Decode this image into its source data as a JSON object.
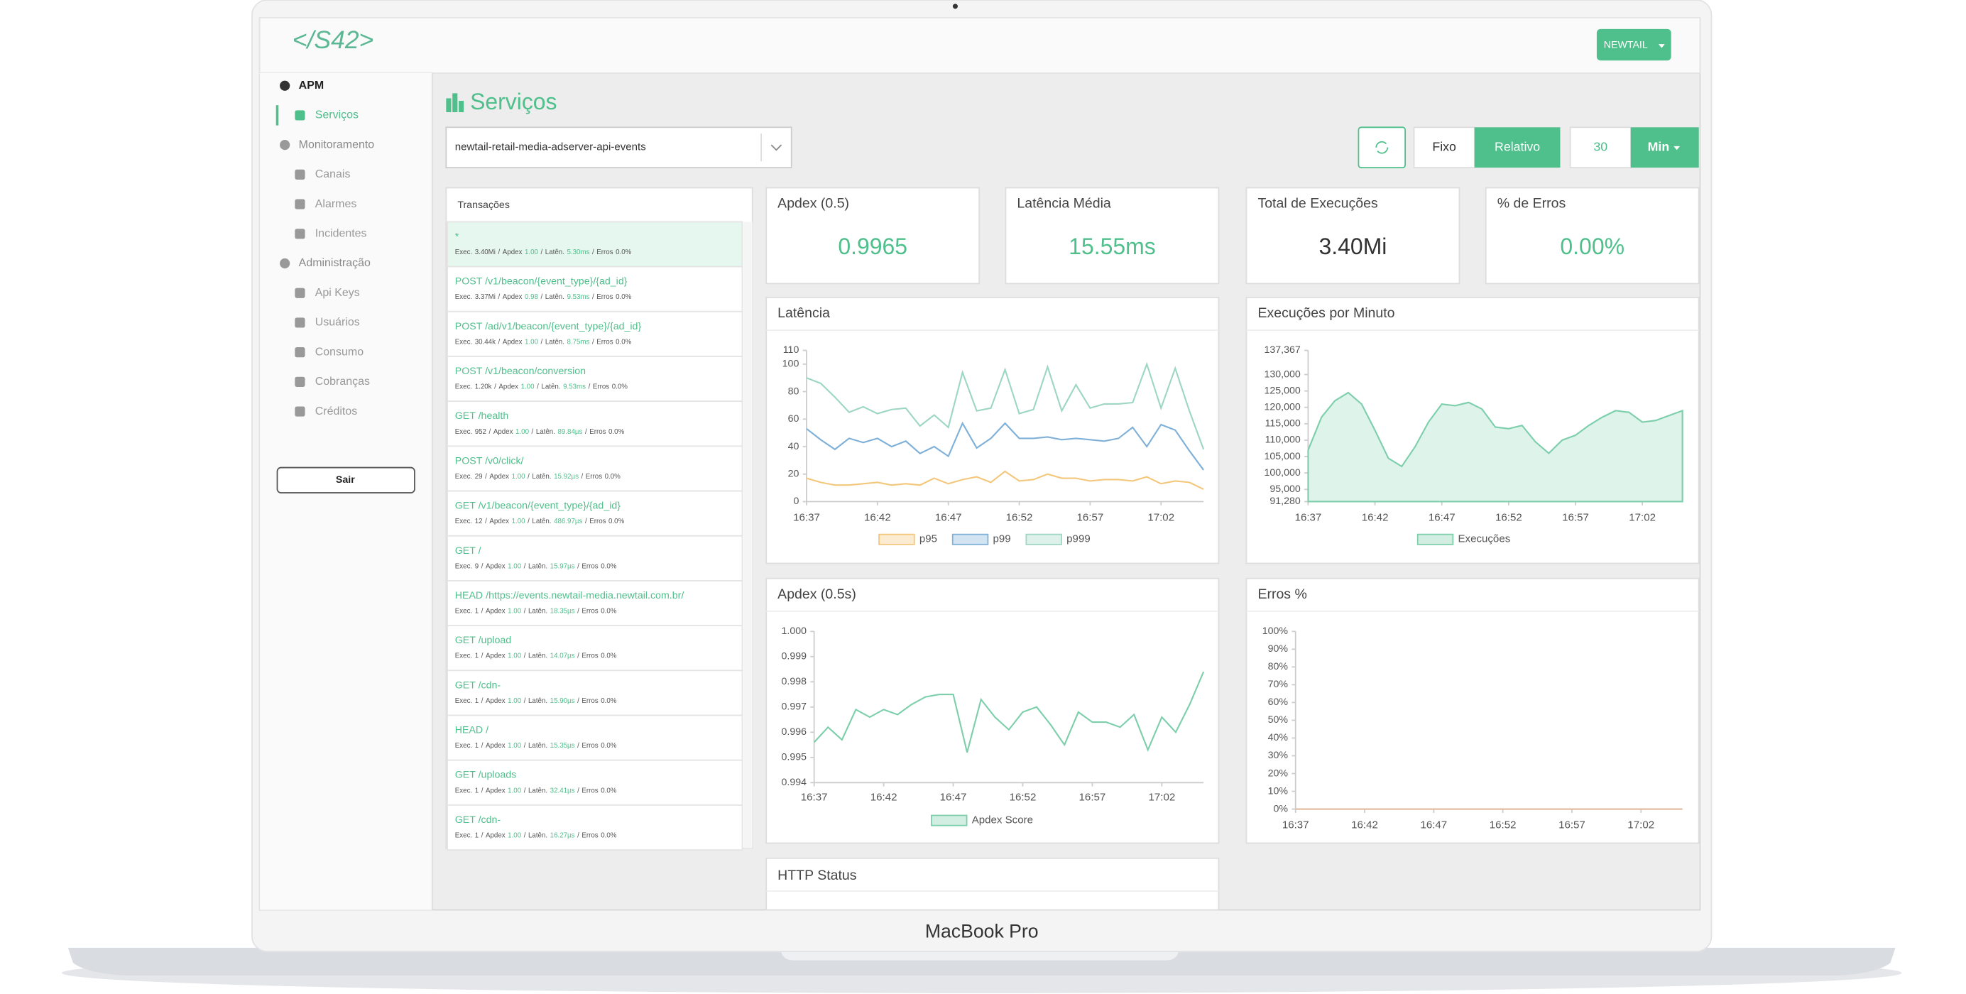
{
  "device": "MacBook Pro",
  "header": {
    "logo": "</S42>",
    "account": "NEWTAIL"
  },
  "sidebar": {
    "sections": [
      {
        "title": "APM",
        "items": [
          "Serviços"
        ]
      },
      {
        "title": "Monitoramento",
        "items": [
          "Canais",
          "Alarmes",
          "Incidentes"
        ]
      },
      {
        "title": "Administração",
        "items": [
          "Api Keys",
          "Usuários",
          "Consumo",
          "Cobranças",
          "Créditos"
        ]
      }
    ],
    "logout": "Sair"
  },
  "page": {
    "title": "Serviços",
    "service": "newtail-retail-media-adserver-api-events",
    "controls": {
      "fixed": "Fixo",
      "relative": "Relativo",
      "amount": "30",
      "unit": "Min"
    }
  },
  "transactions": {
    "title": "Transações",
    "labels": {
      "exec": "Exec.",
      "apdex": "Apdex",
      "latency": "Latên.",
      "errors": "Erros"
    },
    "separator": "/",
    "rows": [
      {
        "name": "*",
        "exec": "3.40Mi",
        "apdex": "1.00",
        "latency": "5.30ms",
        "errors": "0.0%"
      },
      {
        "name": "POST /v1/beacon/{event_type}/{ad_id}",
        "exec": "3.37Mi",
        "apdex": "0.98",
        "latency": "9.53ms",
        "errors": "0.0%"
      },
      {
        "name": "POST /ad/v1/beacon/{event_type}/{ad_id}",
        "exec": "30.44k",
        "apdex": "1.00",
        "latency": "8.75ms",
        "errors": "0.0%"
      },
      {
        "name": "POST /v1/beacon/conversion",
        "exec": "1.20k",
        "apdex": "1.00",
        "latency": "9.53ms",
        "errors": "0.0%"
      },
      {
        "name": "GET /health",
        "exec": "952",
        "apdex": "1.00",
        "latency": "89.84µs",
        "errors": "0.0%"
      },
      {
        "name": "POST /v0/click/",
        "exec": "29",
        "apdex": "1.00",
        "latency": "15.92µs",
        "errors": "0.0%"
      },
      {
        "name": "GET /v1/beacon/{event_type}/{ad_id}",
        "exec": "12",
        "apdex": "1.00",
        "latency": "486.97µs",
        "errors": "0.0%"
      },
      {
        "name": "GET /",
        "exec": "9",
        "apdex": "1.00",
        "latency": "15.97µs",
        "errors": "0.0%"
      },
      {
        "name": "HEAD /https://events.newtail-media.newtail.com.br/",
        "exec": "1",
        "apdex": "1.00",
        "latency": "18.35µs",
        "errors": "0.0%"
      },
      {
        "name": "GET /upload",
        "exec": "1",
        "apdex": "1.00",
        "latency": "14.07µs",
        "errors": "0.0%"
      },
      {
        "name": "GET /cdn-",
        "exec": "1",
        "apdex": "1.00",
        "latency": "15.90µs",
        "errors": "0.0%"
      },
      {
        "name": "HEAD /",
        "exec": "1",
        "apdex": "1.00",
        "latency": "15.35µs",
        "errors": "0.0%"
      },
      {
        "name": "GET /uploads",
        "exec": "1",
        "apdex": "1.00",
        "latency": "32.41µs",
        "errors": "0.0%"
      },
      {
        "name": "GET /cdn-",
        "exec": "1",
        "apdex": "1.00",
        "latency": "16.27µs",
        "errors": "0.0%"
      }
    ]
  },
  "stats": [
    {
      "title": "Apdex (0.5)",
      "value": "0.9965",
      "color": "#4fbf8b"
    },
    {
      "title": "Latência Média",
      "value": "15.55ms",
      "color": "#4fbf8b"
    },
    {
      "title": "Total de Execuções",
      "value": "3.40Mi",
      "color": "#333333"
    },
    {
      "title": "% de Erros",
      "value": "0.00%",
      "color": "#4fbf8b"
    }
  ],
  "chart_data": [
    {
      "type": "line",
      "title": "Latência",
      "legend": "bottom",
      "categories": [
        "16:37",
        null,
        null,
        null,
        null,
        "16:42",
        null,
        null,
        null,
        null,
        "16:47",
        null,
        null,
        null,
        null,
        "16:52",
        null,
        null,
        null,
        null,
        "16:57",
        null,
        null,
        null,
        null,
        "17:02",
        null,
        null,
        null
      ],
      "ylim": [
        0,
        110
      ],
      "yticks": [
        0,
        20,
        40,
        60,
        80,
        100,
        110
      ],
      "series": [
        {
          "name": "p95",
          "color": "#f3c77c",
          "values": [
            17,
            14,
            12,
            12,
            13,
            14,
            12,
            13,
            12,
            17,
            13,
            16,
            18,
            14,
            22,
            15,
            16,
            20,
            17,
            17,
            15,
            16,
            16,
            15,
            18,
            13,
            15,
            14,
            9
          ]
        },
        {
          "name": "p99",
          "color": "#7fb0d8",
          "values": [
            53,
            45,
            38,
            46,
            43,
            46,
            40,
            44,
            35,
            40,
            33,
            57,
            39,
            46,
            57,
            46,
            46,
            47,
            45,
            46,
            45,
            44,
            46,
            54,
            40,
            56,
            52,
            37,
            23
          ]
        },
        {
          "name": "p999",
          "color": "#9ed6c4",
          "values": [
            90,
            86,
            76,
            65,
            69,
            64,
            67,
            68,
            55,
            63,
            54,
            94,
            66,
            68,
            96,
            64,
            67,
            98,
            66,
            85,
            68,
            71,
            71,
            72,
            100,
            68,
            97,
            66,
            38
          ]
        }
      ]
    },
    {
      "type": "area",
      "title": "Execuções por Minuto",
      "legend": "bottom",
      "categories": [
        "16:37",
        null,
        null,
        null,
        null,
        "16:42",
        null,
        null,
        null,
        null,
        "16:47",
        null,
        null,
        null,
        null,
        "16:52",
        null,
        null,
        null,
        null,
        "16:57",
        null,
        null,
        null,
        null,
        "17:02",
        null,
        null,
        null
      ],
      "ylim": [
        91280,
        137367
      ],
      "yticks": [
        {
          "value": 91280,
          "label": "91,280"
        },
        {
          "value": 95000,
          "label": "95,000"
        },
        {
          "value": 100000,
          "label": "100,000"
        },
        {
          "value": 105000,
          "label": "105,000"
        },
        {
          "value": 110000,
          "label": "110,000"
        },
        {
          "value": 115000,
          "label": "115,000"
        },
        {
          "value": 120000,
          "label": "120,000"
        },
        {
          "value": 125000,
          "label": "125,000"
        },
        {
          "value": 130000,
          "label": "130,000"
        },
        {
          "value": 137367,
          "label": "137,367"
        }
      ],
      "series": [
        {
          "name": "Execuções",
          "color": "#7dcfac",
          "values": [
            107000,
            117000,
            122000,
            124500,
            121000,
            113000,
            104500,
            102000,
            108000,
            115500,
            121000,
            120500,
            121500,
            119500,
            114000,
            113500,
            114500,
            109500,
            106000,
            110000,
            111500,
            114500,
            117000,
            119000,
            118500,
            115500,
            116000,
            117500,
            119000
          ]
        }
      ]
    },
    {
      "type": "line",
      "title": "Apdex (0.5s)",
      "legend": "bottom",
      "categories": [
        "16:37",
        null,
        null,
        null,
        null,
        "16:42",
        null,
        null,
        null,
        null,
        "16:47",
        null,
        null,
        null,
        null,
        "16:52",
        null,
        null,
        null,
        null,
        "16:57",
        null,
        null,
        null,
        null,
        "17:02",
        null,
        null,
        null
      ],
      "ylim": [
        0.994,
        1
      ],
      "yticks": [
        0.994,
        0.995,
        0.996,
        0.997,
        0.998,
        0.999,
        {
          "value": 1,
          "label": "1.000"
        }
      ],
      "series": [
        {
          "name": "Apdex Score",
          "color": "#7dcfac",
          "values": [
            0.9956,
            0.9962,
            0.9957,
            0.9969,
            0.9966,
            0.9969,
            0.9967,
            0.9971,
            0.9974,
            0.9975,
            0.9975,
            0.9952,
            0.9973,
            0.9966,
            0.9961,
            0.9968,
            0.997,
            0.9963,
            0.9955,
            0.9968,
            0.9964,
            0.9964,
            0.9962,
            0.9967,
            0.9953,
            0.9966,
            0.996,
            0.9971,
            0.9984
          ]
        }
      ]
    },
    {
      "type": "line",
      "title": "Erros %",
      "categories": [
        "16:37",
        null,
        null,
        null,
        null,
        "16:42",
        null,
        null,
        null,
        null,
        "16:47",
        null,
        null,
        null,
        null,
        "16:52",
        null,
        null,
        null,
        null,
        "16:57",
        null,
        null,
        null,
        null,
        "17:02",
        null,
        null,
        null
      ],
      "ylim": [
        0,
        100
      ],
      "yticks": [
        {
          "value": 0,
          "label": "0%"
        },
        {
          "value": 10,
          "label": "10%"
        },
        {
          "value": 20,
          "label": "20%"
        },
        {
          "value": 30,
          "label": "30%"
        },
        {
          "value": 40,
          "label": "40%"
        },
        {
          "value": 50,
          "label": "50%"
        },
        {
          "value": 60,
          "label": "60%"
        },
        {
          "value": 70,
          "label": "70%"
        },
        {
          "value": 80,
          "label": "80%"
        },
        {
          "value": 90,
          "label": "90%"
        },
        {
          "value": 100,
          "label": "100%"
        }
      ],
      "series": [
        {
          "color": "#e0b89a",
          "values": [
            0,
            0,
            0,
            0,
            0,
            0,
            0,
            0,
            0,
            0,
            0,
            0,
            0,
            0,
            0,
            0,
            0,
            0,
            0,
            0,
            0,
            0,
            0,
            0,
            0,
            0,
            0,
            0,
            0
          ]
        }
      ]
    }
  ],
  "http_status": {
    "title": "HTTP Status"
  }
}
